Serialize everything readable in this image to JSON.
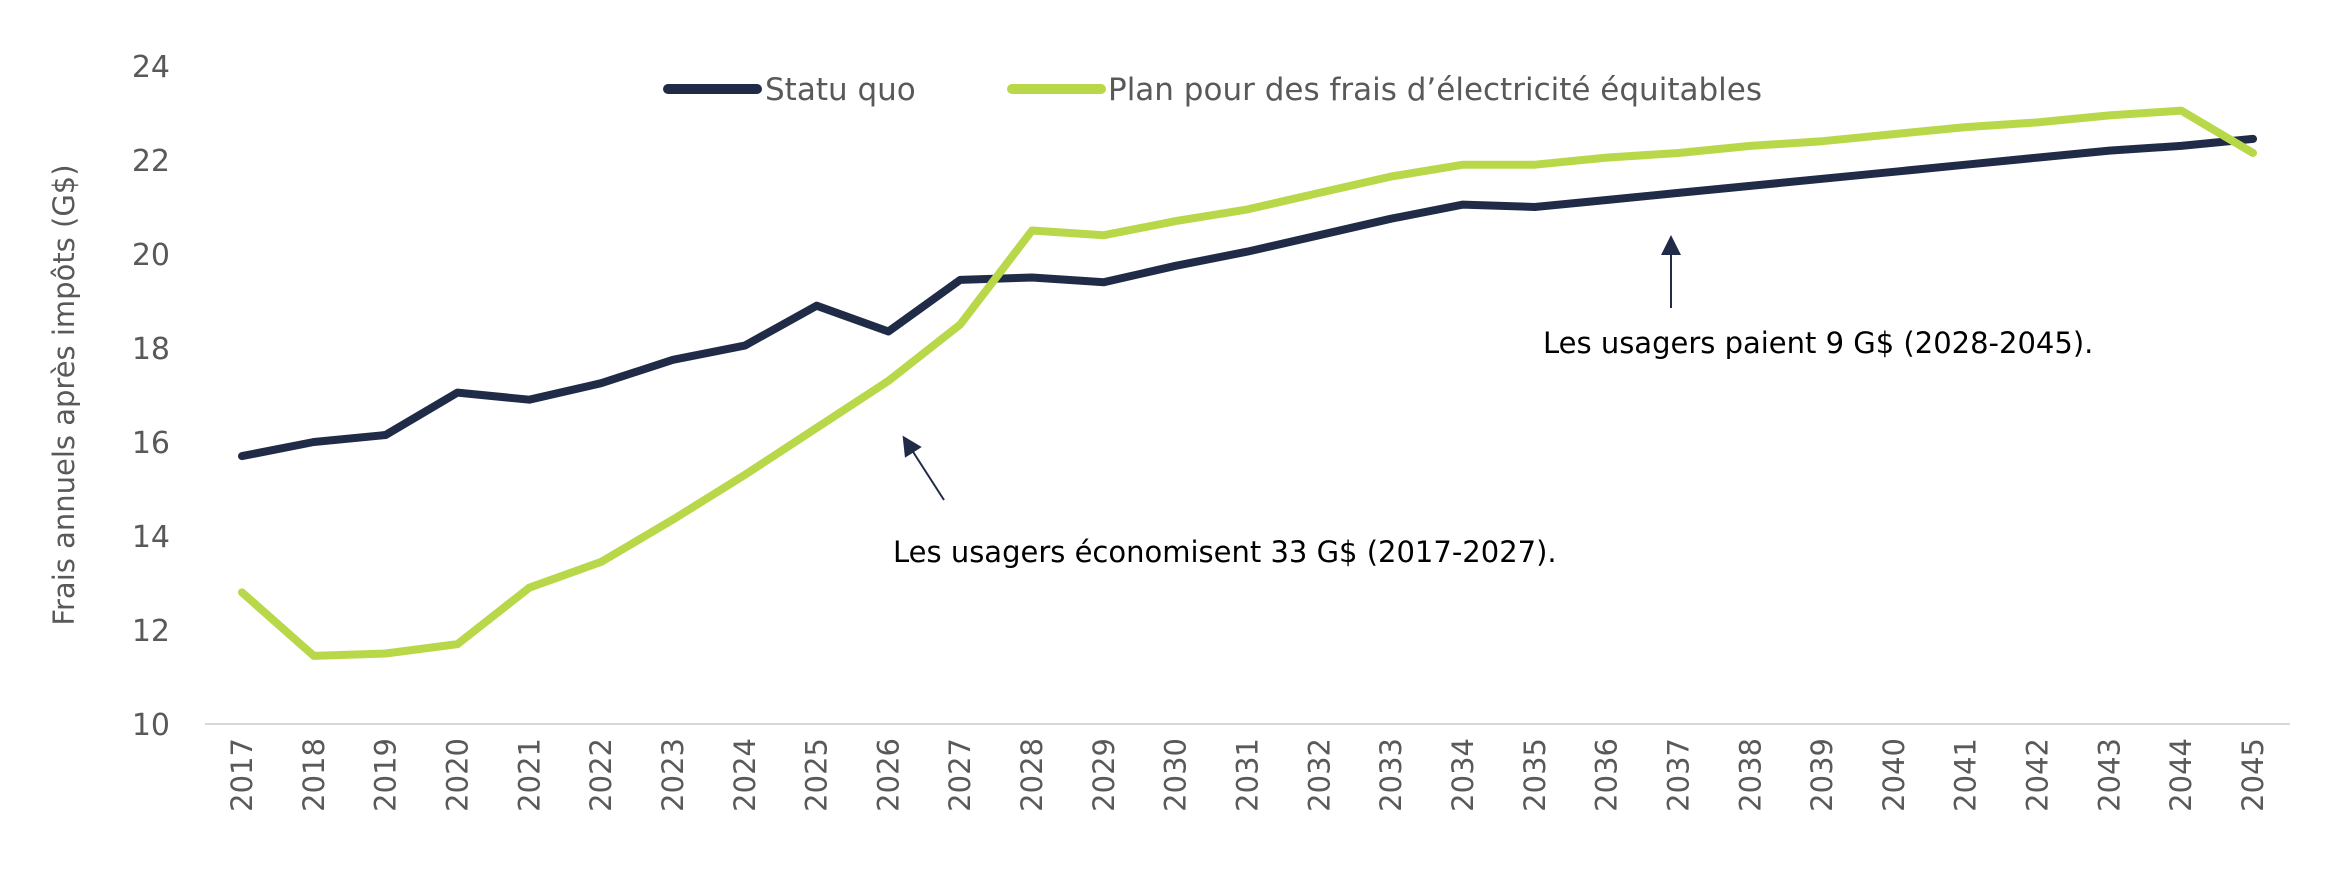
{
  "chart_data": {
    "type": "line",
    "title": "",
    "xlabel": "",
    "ylabel": "Frais annuels après impôts (G$)",
    "ylim": [
      10,
      24
    ],
    "yticks": [
      10,
      12,
      14,
      16,
      18,
      20,
      22,
      24
    ],
    "grid": false,
    "legend_position": "top-center",
    "x": [
      2017,
      2018,
      2019,
      2020,
      2021,
      2022,
      2023,
      2024,
      2025,
      2026,
      2027,
      2028,
      2029,
      2030,
      2031,
      2032,
      2033,
      2034,
      2035,
      2036,
      2037,
      2038,
      2039,
      2040,
      2041,
      2042,
      2043,
      2044,
      2045
    ],
    "series": [
      {
        "name": "Statu quo",
        "color": "#1f2b47",
        "values": [
          15.7,
          16.0,
          16.15,
          17.05,
          16.9,
          17.25,
          17.75,
          18.05,
          18.9,
          18.35,
          19.45,
          19.5,
          19.4,
          19.75,
          20.05,
          20.4,
          20.75,
          21.05,
          21.0,
          21.15,
          21.3,
          21.45,
          21.6,
          21.75,
          21.9,
          22.05,
          22.2,
          22.3,
          22.45
        ]
      },
      {
        "name": "Plan pour des frais d’électricité équitables",
        "color": "#b8d84a",
        "values": [
          12.8,
          11.45,
          11.5,
          11.7,
          12.9,
          13.45,
          14.35,
          15.3,
          16.3,
          17.3,
          18.5,
          20.5,
          20.4,
          20.7,
          20.95,
          21.3,
          21.65,
          21.9,
          21.9,
          22.05,
          22.15,
          22.3,
          22.4,
          22.55,
          22.7,
          22.8,
          22.95,
          23.05,
          22.15
        ]
      }
    ],
    "annotations": [
      {
        "text": "Les usagers économisent 33 G$ (2017-2027)."
      },
      {
        "text": "Les usagers paient 9 G$ (2028-2045)."
      }
    ]
  }
}
